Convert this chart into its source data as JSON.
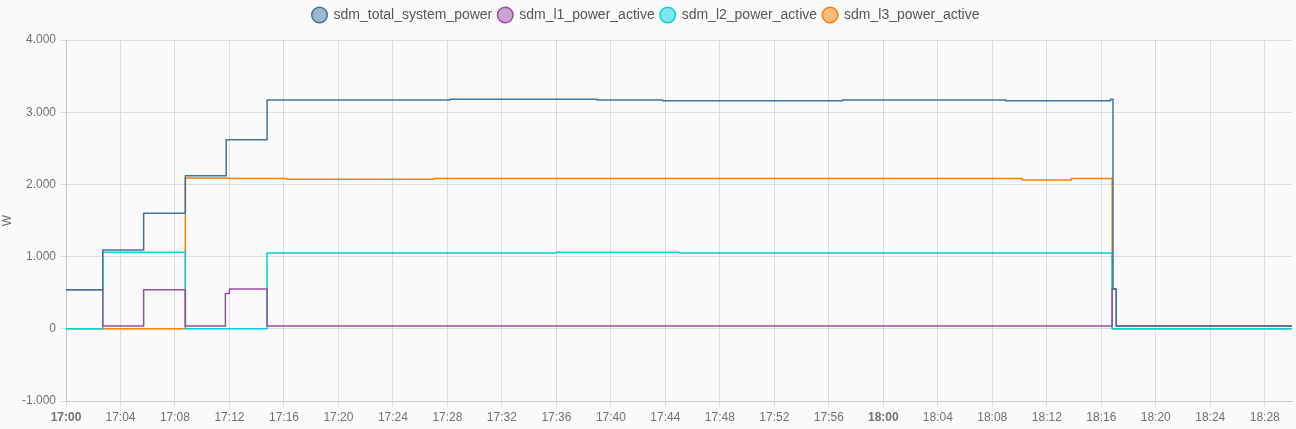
{
  "chart_data": {
    "type": "step",
    "ylabel": "W",
    "xlim": [
      17,
      18.5
    ],
    "ylim": [
      -1000,
      4000
    ],
    "xticks": [
      {
        "value": 17,
        "label": "17:00"
      },
      {
        "value": 17.0667,
        "label": "17:04"
      },
      {
        "value": 17.1333,
        "label": "17:08"
      },
      {
        "value": 17.2,
        "label": "17:12"
      },
      {
        "value": 17.2667,
        "label": "17:16"
      },
      {
        "value": 17.3333,
        "label": "17:20"
      },
      {
        "value": 17.4,
        "label": "17:24"
      },
      {
        "value": 17.4667,
        "label": "17:28"
      },
      {
        "value": 17.5333,
        "label": "17:32"
      },
      {
        "value": 17.6,
        "label": "17:36"
      },
      {
        "value": 17.6667,
        "label": "17:40"
      },
      {
        "value": 17.7333,
        "label": "17:44"
      },
      {
        "value": 17.8,
        "label": "17:48"
      },
      {
        "value": 17.8667,
        "label": "17:52"
      },
      {
        "value": 17.9333,
        "label": "17:56"
      },
      {
        "value": 18,
        "label": "18:00"
      },
      {
        "value": 18.0667,
        "label": "18:04"
      },
      {
        "value": 18.1333,
        "label": "18:08"
      },
      {
        "value": 18.2,
        "label": "18:12"
      },
      {
        "value": 18.2667,
        "label": "18:16"
      },
      {
        "value": 18.3333,
        "label": "18:20"
      },
      {
        "value": 18.4,
        "label": "18:24"
      },
      {
        "value": 18.4667,
        "label": "18:28"
      }
    ],
    "yticks": [
      {
        "value": -1000,
        "label": "-1.000"
      },
      0,
      {
        "value": 1000,
        "label": "1.000"
      },
      {
        "value": 2000,
        "label": "2.000"
      },
      {
        "value": 3000,
        "label": "3.000"
      },
      {
        "value": 4000,
        "label": "4.000"
      }
    ],
    "grid": true,
    "legend": "top",
    "series": [
      {
        "name": "sdm_total_system_power",
        "color": "#44739e",
        "x": [
          17,
          17.045,
          17.095,
          17.146,
          17.196,
          17.246,
          17.47,
          17.65,
          17.73,
          17.95,
          18.15,
          18.278,
          18.281,
          18.285,
          18.5
        ],
        "values": [
          540,
          1090,
          1600,
          2120,
          2620,
          3170,
          3180,
          3170,
          3160,
          3170,
          3160,
          3180,
          550,
          40,
          40
        ]
      },
      {
        "name": "sdm_l1_power_active",
        "color": "#984ea3",
        "x": [
          17,
          17.045,
          17.095,
          17.146,
          17.195,
          17.2,
          17.246,
          18.28,
          18.285,
          18.5
        ],
        "values": [
          540,
          40,
          540,
          40,
          490,
          550,
          40,
          550,
          40,
          40
        ]
      },
      {
        "name": "sdm_l2_power_active",
        "color": "#00d2d5",
        "x": [
          17,
          17.045,
          17.146,
          17.246,
          17.6,
          17.75,
          18.28,
          18.5
        ],
        "values": [
          0,
          1060,
          0,
          1050,
          1060,
          1050,
          0,
          0
        ]
      },
      {
        "name": "sdm_l3_power_active",
        "color": "#ff7f00",
        "x": [
          17,
          17.146,
          17.2,
          17.27,
          17.45,
          18.17,
          18.23,
          18.28,
          18.5
        ],
        "values": [
          0,
          2090,
          2080,
          2070,
          2080,
          2060,
          2080,
          0,
          0
        ]
      }
    ]
  }
}
